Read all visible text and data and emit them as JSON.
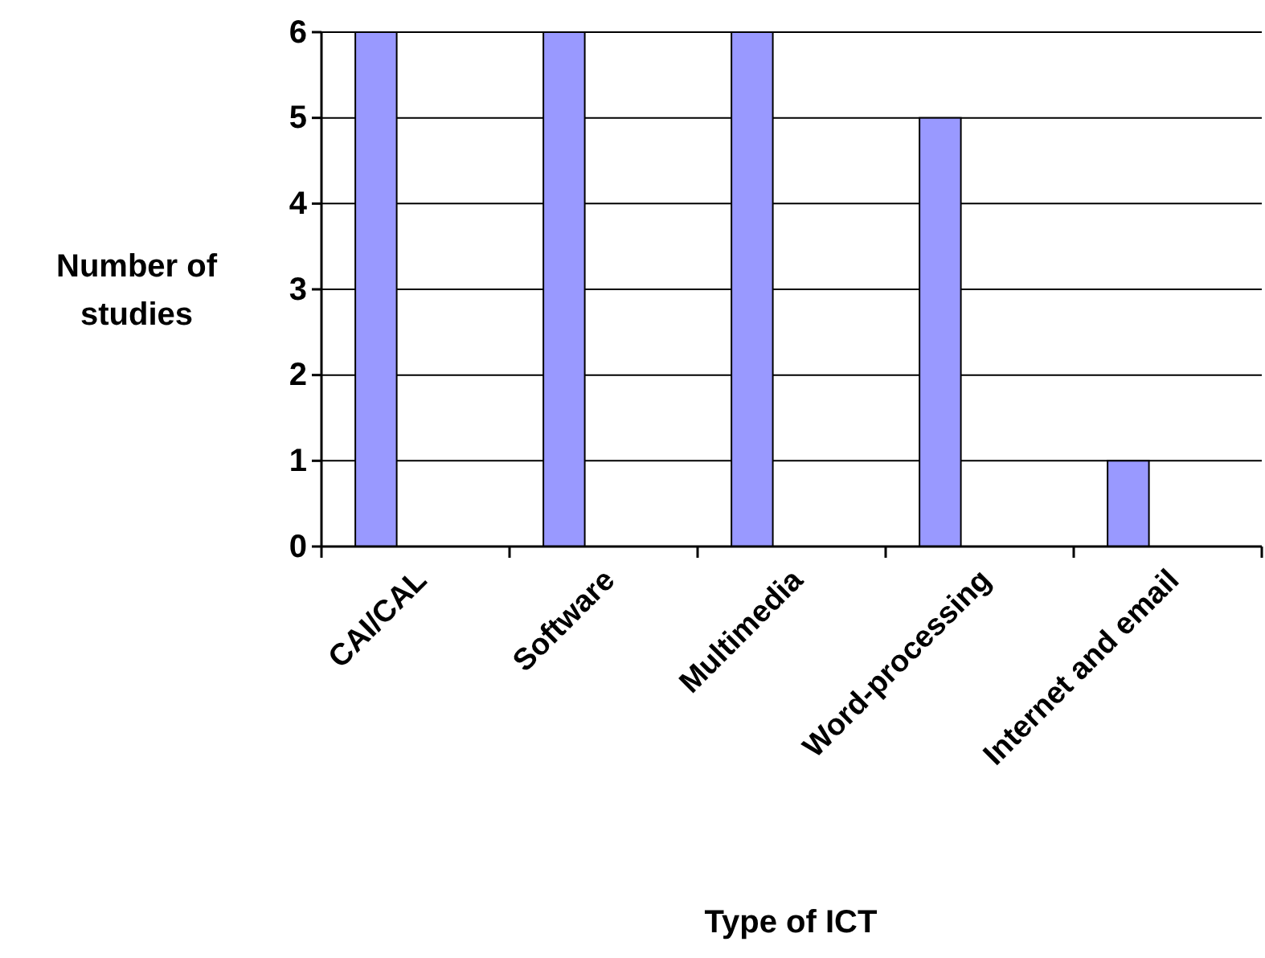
{
  "chart_data": {
    "type": "bar",
    "categories": [
      "CAI/CAL",
      "Software",
      "Multimedia",
      "Word-processing",
      "Internet and email"
    ],
    "values": [
      6,
      6,
      6,
      5,
      1
    ],
    "color": "#9999ff",
    "xlabel": "Type of ICT",
    "ylabel": "Number of studies",
    "ylim": [
      0,
      6
    ],
    "yticks": [
      0,
      1,
      2,
      3,
      4,
      5,
      6
    ],
    "grid": "y"
  }
}
